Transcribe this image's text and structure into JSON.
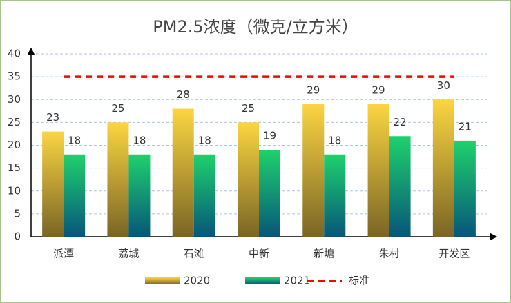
{
  "chart_data": {
    "type": "bar",
    "title": "PM2.5浓度（微克/立方米）",
    "categories": [
      "派潭",
      "荔城",
      "石滩",
      "中新",
      "新塘",
      "朱村",
      "开发区"
    ],
    "series": [
      {
        "name": "2020",
        "type": "bar",
        "color": "#fbd542",
        "values": [
          23,
          25,
          28,
          25,
          29,
          29,
          30
        ]
      },
      {
        "name": "2021",
        "type": "bar",
        "color": "#1fd16c",
        "values": [
          18,
          18,
          18,
          19,
          18,
          22,
          21
        ]
      },
      {
        "name": "标准",
        "type": "line",
        "color": "#ff0000",
        "values": [
          35,
          35,
          35,
          35,
          35,
          35,
          35
        ]
      }
    ],
    "ylim": [
      0,
      40
    ],
    "yticks": [
      0,
      5,
      10,
      15,
      20,
      25,
      30,
      35,
      40
    ],
    "grid": true,
    "legend": "bottom"
  }
}
